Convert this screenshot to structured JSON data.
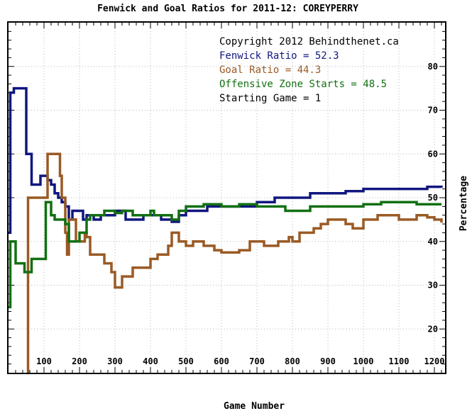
{
  "chart_data": {
    "type": "line",
    "title": "Fenwick and Goal Ratios for 2011-12: COREYPERRY",
    "xlabel": "Game Number",
    "ylabel": "Percentage",
    "xlim": [
      0,
      1230
    ],
    "ylim": [
      10,
      90
    ],
    "x_ticks": [
      100,
      200,
      300,
      400,
      500,
      600,
      700,
      800,
      900,
      1000,
      1100,
      1200
    ],
    "x_tick_labels": [
      "100",
      "200",
      "300",
      "400",
      "500",
      "600",
      "700",
      "800",
      "900",
      "1000",
      "1100",
      "1200"
    ],
    "y_ticks": [
      20,
      30,
      40,
      50,
      60,
      70,
      80
    ],
    "y_tick_labels": [
      "20",
      "30",
      "40",
      "50",
      "60",
      "70",
      "80"
    ],
    "grid": true,
    "legend_position": "top-right",
    "annotations": [
      {
        "text": "Copyright 2012 Behindthenet.ca",
        "color": "#000000"
      },
      {
        "text": "Fenwick Ratio = 52.3",
        "color": "#10167f"
      },
      {
        "text": "Goal Ratio = 44.3",
        "color": "#9a5a24"
      },
      {
        "text": "Offensive Zone Starts = 48.5",
        "color": "#127012"
      },
      {
        "text": "Starting Game = 1",
        "color": "#000000"
      }
    ],
    "series": [
      {
        "name": "Fenwick Ratio",
        "color": "#10167f",
        "points": [
          [
            0,
            42
          ],
          [
            5,
            74
          ],
          [
            15,
            75
          ],
          [
            45,
            75
          ],
          [
            50,
            60
          ],
          [
            60,
            60
          ],
          [
            65,
            53
          ],
          [
            85,
            53
          ],
          [
            90,
            55
          ],
          [
            100,
            55
          ],
          [
            110,
            54
          ],
          [
            120,
            53
          ],
          [
            130,
            51
          ],
          [
            140,
            50
          ],
          [
            150,
            49
          ],
          [
            160,
            48
          ],
          [
            170,
            45
          ],
          [
            180,
            47
          ],
          [
            200,
            47
          ],
          [
            210,
            45
          ],
          [
            220,
            46
          ],
          [
            240,
            45
          ],
          [
            260,
            46
          ],
          [
            280,
            46
          ],
          [
            300,
            47
          ],
          [
            320,
            47
          ],
          [
            330,
            45
          ],
          [
            350,
            45
          ],
          [
            380,
            46
          ],
          [
            400,
            46
          ],
          [
            430,
            45
          ],
          [
            450,
            45
          ],
          [
            460,
            44.5
          ],
          [
            480,
            46
          ],
          [
            500,
            47
          ],
          [
            540,
            47
          ],
          [
            560,
            48
          ],
          [
            600,
            48
          ],
          [
            650,
            48
          ],
          [
            700,
            49
          ],
          [
            750,
            50
          ],
          [
            800,
            50
          ],
          [
            850,
            51
          ],
          [
            900,
            51
          ],
          [
            950,
            51.5
          ],
          [
            1000,
            52
          ],
          [
            1100,
            52
          ],
          [
            1150,
            52
          ],
          [
            1180,
            52.5
          ],
          [
            1200,
            52.5
          ],
          [
            1220,
            52.3
          ]
        ]
      },
      {
        "name": "Goal Ratio",
        "color": "#9a5a24",
        "points": [
          [
            50,
            8
          ],
          [
            55,
            50
          ],
          [
            100,
            50
          ],
          [
            110,
            60
          ],
          [
            140,
            60
          ],
          [
            145,
            55
          ],
          [
            150,
            50
          ],
          [
            160,
            42
          ],
          [
            165,
            37
          ],
          [
            170,
            45
          ],
          [
            180,
            45
          ],
          [
            190,
            40
          ],
          [
            200,
            40
          ],
          [
            215,
            42
          ],
          [
            220,
            41
          ],
          [
            230,
            37
          ],
          [
            250,
            37
          ],
          [
            270,
            35
          ],
          [
            290,
            33
          ],
          [
            300,
            29.5
          ],
          [
            315,
            29.5
          ],
          [
            320,
            32
          ],
          [
            340,
            32
          ],
          [
            350,
            34
          ],
          [
            380,
            34
          ],
          [
            400,
            36
          ],
          [
            410,
            36
          ],
          [
            420,
            37
          ],
          [
            440,
            37
          ],
          [
            450,
            39
          ],
          [
            460,
            42
          ],
          [
            470,
            42
          ],
          [
            480,
            40
          ],
          [
            500,
            39
          ],
          [
            520,
            40
          ],
          [
            550,
            39
          ],
          [
            580,
            38
          ],
          [
            600,
            37.5
          ],
          [
            650,
            38
          ],
          [
            680,
            40
          ],
          [
            700,
            40
          ],
          [
            720,
            39
          ],
          [
            760,
            40
          ],
          [
            790,
            41
          ],
          [
            800,
            40
          ],
          [
            820,
            42
          ],
          [
            840,
            42
          ],
          [
            860,
            43
          ],
          [
            880,
            44
          ],
          [
            900,
            45
          ],
          [
            950,
            44
          ],
          [
            970,
            43
          ],
          [
            1000,
            45
          ],
          [
            1040,
            46
          ],
          [
            1100,
            45
          ],
          [
            1150,
            46
          ],
          [
            1180,
            45.5
          ],
          [
            1200,
            45
          ],
          [
            1220,
            44.3
          ]
        ]
      },
      {
        "name": "Offensive Zone Starts",
        "color": "#127012",
        "points": [
          [
            0,
            25
          ],
          [
            5,
            40
          ],
          [
            15,
            40
          ],
          [
            20,
            35
          ],
          [
            40,
            35
          ],
          [
            45,
            33
          ],
          [
            60,
            33
          ],
          [
            65,
            36
          ],
          [
            100,
            36
          ],
          [
            105,
            49
          ],
          [
            120,
            46
          ],
          [
            130,
            45
          ],
          [
            150,
            45
          ],
          [
            160,
            44
          ],
          [
            170,
            40
          ],
          [
            190,
            40
          ],
          [
            200,
            42
          ],
          [
            220,
            45
          ],
          [
            230,
            46
          ],
          [
            250,
            46
          ],
          [
            270,
            47
          ],
          [
            300,
            46.5
          ],
          [
            320,
            47
          ],
          [
            350,
            46
          ],
          [
            380,
            46
          ],
          [
            400,
            47
          ],
          [
            410,
            46
          ],
          [
            450,
            46
          ],
          [
            460,
            45
          ],
          [
            480,
            47
          ],
          [
            500,
            48
          ],
          [
            520,
            48
          ],
          [
            550,
            48.5
          ],
          [
            600,
            48
          ],
          [
            650,
            48.5
          ],
          [
            700,
            48
          ],
          [
            750,
            48
          ],
          [
            780,
            47
          ],
          [
            800,
            47
          ],
          [
            850,
            48
          ],
          [
            900,
            48
          ],
          [
            950,
            48
          ],
          [
            1000,
            48.5
          ],
          [
            1050,
            49
          ],
          [
            1100,
            49
          ],
          [
            1150,
            48.5
          ],
          [
            1200,
            48.5
          ],
          [
            1220,
            48.5
          ]
        ]
      }
    ]
  }
}
